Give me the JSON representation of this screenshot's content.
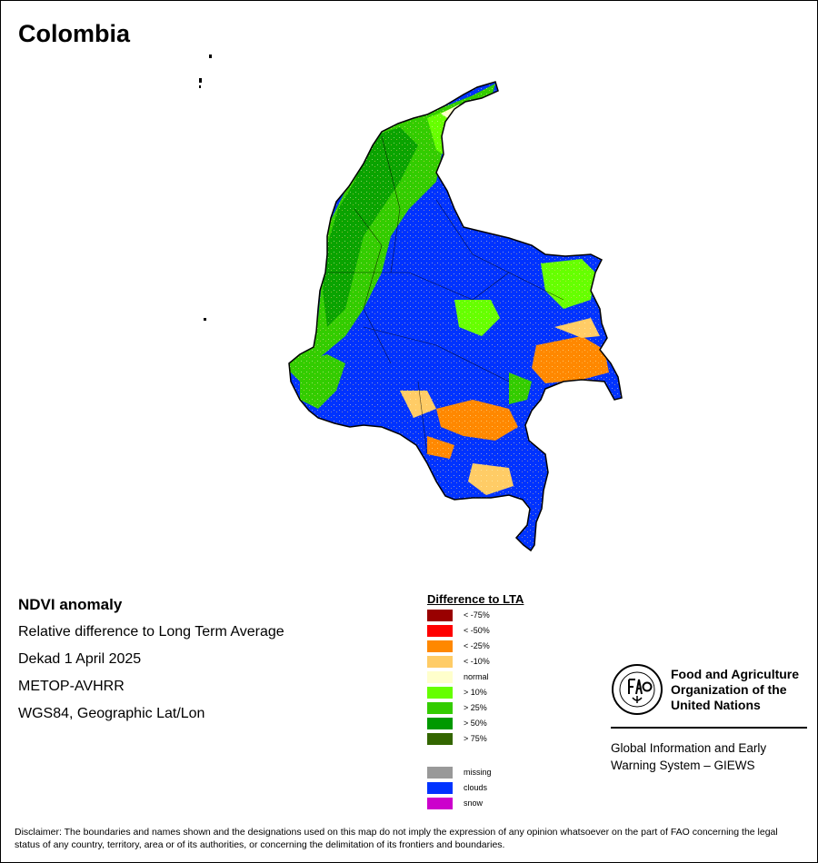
{
  "title": "Colombia",
  "info": {
    "product": "NDVI anomaly",
    "description": "Relative difference to Long Term Average",
    "period": "Dekad 1 April 2025",
    "sensor": "METOP-AVHRR",
    "projection": "WGS84, Geographic Lat/Lon"
  },
  "legend": {
    "title": "Difference to LTA",
    "items": [
      {
        "label": "< -75%",
        "color": "#990000"
      },
      {
        "label": "< -50%",
        "color": "#ff0000"
      },
      {
        "label": "< -25%",
        "color": "#ff8800"
      },
      {
        "label": "< -10%",
        "color": "#ffcc66"
      },
      {
        "label": "normal",
        "color": "#ffffcc"
      },
      {
        "label": "> 10%",
        "color": "#66ff00"
      },
      {
        "label": "> 25%",
        "color": "#33cc00"
      },
      {
        "label": "> 50%",
        "color": "#009900"
      },
      {
        "label": "> 75%",
        "color": "#336600"
      }
    ],
    "extra_items": [
      {
        "label": "missing",
        "color": "#999999"
      },
      {
        "label": "clouds",
        "color": "#0033ff"
      },
      {
        "label": "snow",
        "color": "#cc00cc"
      }
    ]
  },
  "branding": {
    "org": "Food and Agriculture Organization of the United Nations",
    "system": "Global Information and Early Warning System – GIEWS"
  },
  "disclaimer": "Disclaimer: The boundaries and names shown and the designations used on this map do not imply the expression of any opinion whatsoever on the part of FAO concerning the legal status of any country, territory, area or of its authorities, or concerning the delimitation of its frontiers and boundaries."
}
